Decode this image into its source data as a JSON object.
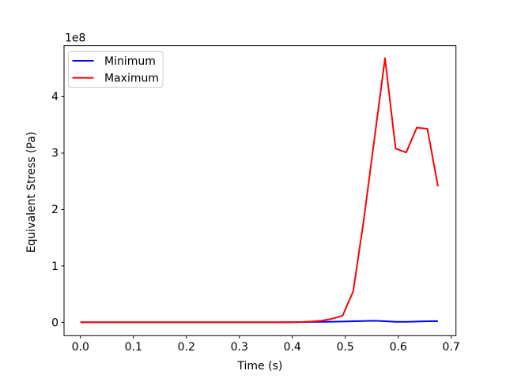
{
  "chart_data": {
    "type": "line",
    "title": "",
    "xlabel": "Time (s)",
    "ylabel": "Equivalent Stress (Pa)",
    "y_offset_label": "1e8",
    "xlim": [
      -0.031,
      0.709
    ],
    "ylim": [
      -23500000,
      490500000
    ],
    "xticks": {
      "values": [
        0.0,
        0.1,
        0.2,
        0.3,
        0.4,
        0.5,
        0.6,
        0.7
      ],
      "labels": [
        "0.0",
        "0.1",
        "0.2",
        "0.3",
        "0.4",
        "0.5",
        "0.6",
        "0.7"
      ]
    },
    "yticks": {
      "values": [
        0,
        100000000,
        200000000,
        300000000,
        400000000
      ],
      "labels": [
        "0",
        "1",
        "2",
        "3",
        "4"
      ]
    },
    "grid": false,
    "legend": {
      "position": "upper left",
      "entries": [
        "Minimum",
        "Maximum"
      ]
    },
    "x": [
      0.0,
      0.025,
      0.05,
      0.075,
      0.1,
      0.125,
      0.15,
      0.175,
      0.2,
      0.225,
      0.25,
      0.275,
      0.3,
      0.325,
      0.35,
      0.375,
      0.4,
      0.415,
      0.435,
      0.455,
      0.475,
      0.495,
      0.515,
      0.535,
      0.555,
      0.575,
      0.595,
      0.615,
      0.635,
      0.655,
      0.675
    ],
    "series": [
      {
        "name": "Minimum",
        "color": "#0000ff",
        "y": [
          200000,
          200000,
          200000,
          200000,
          200000,
          200000,
          200000,
          200000,
          200000,
          200000,
          200000,
          200000,
          200000,
          200000,
          200000,
          200000,
          300000,
          500000,
          800000,
          1000000,
          1200000,
          1500000,
          2000000,
          2500000,
          3000000,
          2000000,
          1000000,
          1000000,
          1500000,
          2000000,
          2200000
        ]
      },
      {
        "name": "Maximum",
        "color": "#ff0000",
        "y": [
          300000,
          300000,
          300000,
          300000,
          300000,
          300000,
          300000,
          300000,
          300000,
          300000,
          300000,
          300000,
          300000,
          300000,
          300000,
          300000,
          400000,
          600000,
          1500000,
          3000000,
          6500000,
          12000000,
          55000000,
          182000000,
          325000000,
          468000000,
          308000000,
          301000000,
          345000000,
          343000000,
          241000000
        ]
      }
    ]
  }
}
